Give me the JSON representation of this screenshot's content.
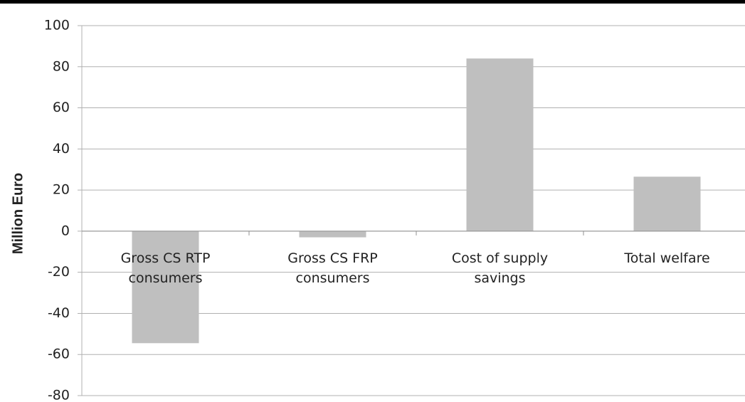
{
  "chart_data": {
    "type": "bar",
    "y_label": "Million Euro",
    "categories": [
      "Gross CS RTP consumers",
      "Gross CS FRP consumers",
      "Cost of supply savings",
      "Total welfare"
    ],
    "values": [
      -54.5,
      -3,
      84,
      26.5
    ],
    "color": "#bfbfbf",
    "ylim": [
      -80,
      100
    ],
    "yticks": [
      -80,
      -60,
      -40,
      -20,
      0,
      20,
      40,
      60,
      80,
      100
    ],
    "grid": true
  }
}
